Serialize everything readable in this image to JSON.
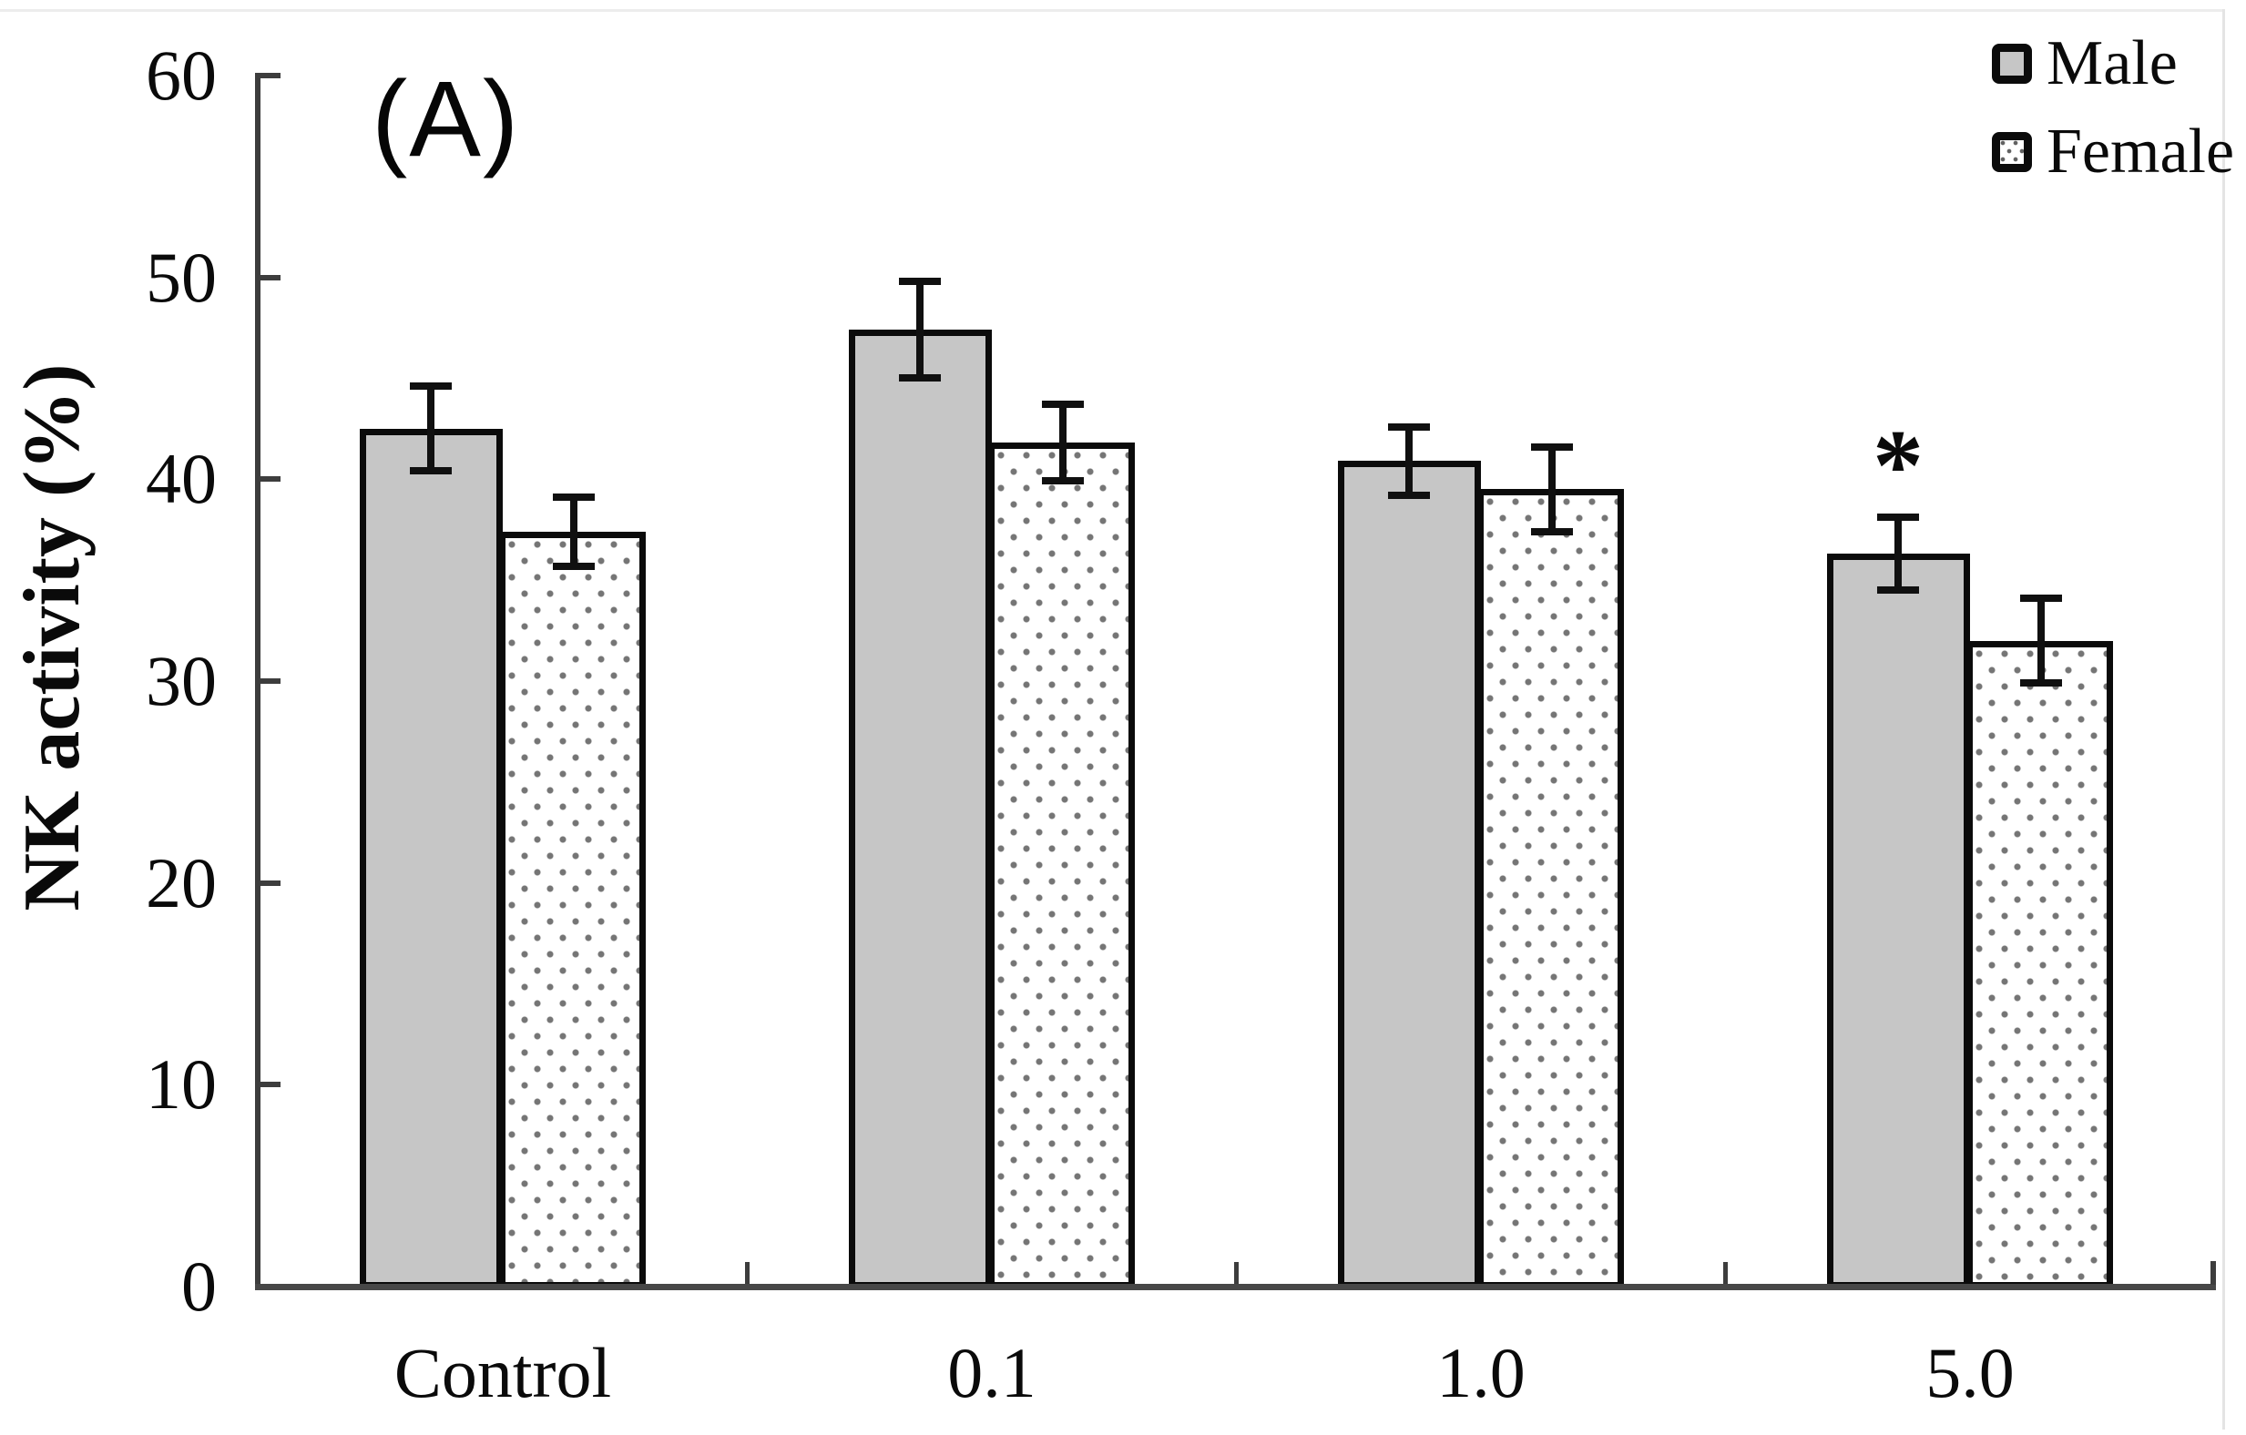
{
  "panel_label": "(A)",
  "chart_data": {
    "type": "bar",
    "title": "",
    "categories": [
      "Control",
      "0.1",
      "1.0",
      "5.0"
    ],
    "series": [
      {
        "name": "Male",
        "style": "solid-gray",
        "values": [
          42.5,
          47.4,
          40.9,
          36.3
        ],
        "errors": [
          2.1,
          2.4,
          1.7,
          1.8
        ]
      },
      {
        "name": "Female",
        "style": "dotted-white",
        "values": [
          37.4,
          41.8,
          39.5,
          32.0
        ],
        "errors": [
          1.7,
          1.9,
          2.1,
          2.1
        ]
      }
    ],
    "xlabel": "",
    "ylabel": "NK activity (%)",
    "ylim": [
      0,
      60
    ],
    "yticks": [
      0,
      10,
      20,
      30,
      40,
      50,
      60
    ],
    "grid": false,
    "error_bars": true,
    "legend_position": "top-right",
    "annotations": [
      {
        "text": "*",
        "series": "Male",
        "category": "5.0"
      }
    ]
  },
  "colors": {
    "male_bar_fill": "#c6c6c6",
    "female_bar_fill": "#ffffff",
    "female_dot": "#757575",
    "bar_border": "#0b0b0b",
    "axis": "#3d3d3d",
    "baseline": "#474747",
    "text": "#0a0a0a"
  }
}
